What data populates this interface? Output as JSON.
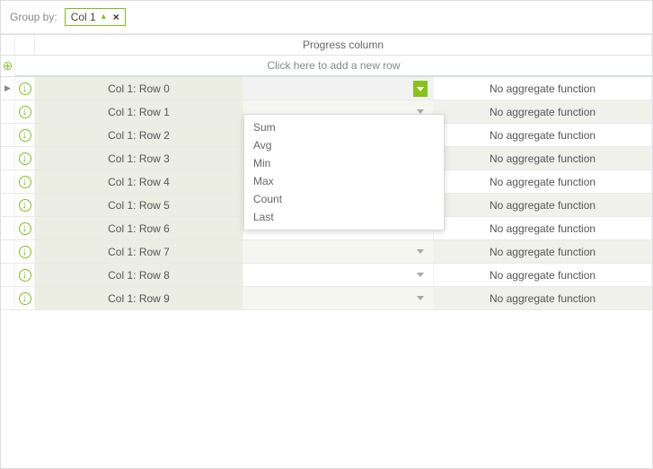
{
  "groupby": {
    "label": "Group by:",
    "chip_label": "Col 1",
    "close_glyph": "×"
  },
  "header": {
    "progress_label": "Progress column"
  },
  "add_row": {
    "plus_glyph": "⊕",
    "message": "Click here to add a new row"
  },
  "dropdown_options": [
    "Sum",
    "Avg",
    "Min",
    "Max",
    "Count",
    "Last"
  ],
  "rows": [
    {
      "indicator": "▶",
      "col1": "Col 1: Row 0",
      "agg": "No aggregate function",
      "dropdown_open": true,
      "alt": false
    },
    {
      "indicator": "",
      "col1": "Col 1: Row 1",
      "agg": "No aggregate function",
      "dropdown_open": false,
      "alt": true
    },
    {
      "indicator": "",
      "col1": "Col 1: Row 2",
      "agg": "No aggregate function",
      "dropdown_open": false,
      "alt": false
    },
    {
      "indicator": "",
      "col1": "Col 1: Row 3",
      "agg": "No aggregate function",
      "dropdown_open": false,
      "alt": true
    },
    {
      "indicator": "",
      "col1": "Col 1: Row 4",
      "agg": "No aggregate function",
      "dropdown_open": false,
      "alt": false
    },
    {
      "indicator": "",
      "col1": "Col 1: Row 5",
      "agg": "No aggregate function",
      "dropdown_open": false,
      "alt": true
    },
    {
      "indicator": "",
      "col1": "Col 1: Row 6",
      "agg": "No aggregate function",
      "dropdown_open": false,
      "alt": false
    },
    {
      "indicator": "",
      "col1": "Col 1: Row 7",
      "agg": "No aggregate function",
      "dropdown_open": false,
      "alt": true
    },
    {
      "indicator": "",
      "col1": "Col 1: Row 8",
      "agg": "No aggregate function",
      "dropdown_open": false,
      "alt": false
    },
    {
      "indicator": "",
      "col1": "Col 1: Row 9",
      "agg": "No aggregate function",
      "dropdown_open": false,
      "alt": true
    }
  ]
}
